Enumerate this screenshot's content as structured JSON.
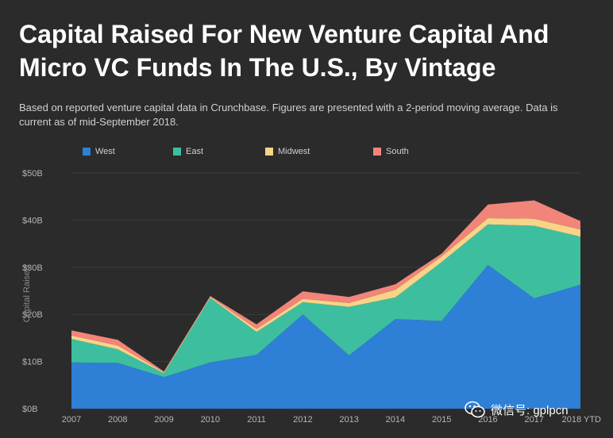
{
  "title": "Capital Raised For New Venture Capital And Micro VC Funds In The U.S., By Vintage",
  "subtitle": "Based on reported venture capital data in Crunchbase. Figures are presented with a 2-period moving average. Data is current as of mid-September 2018.",
  "watermark": "微信号: gplpcn",
  "chart_data": {
    "type": "area",
    "stacked": true,
    "categories": [
      "2007",
      "2008",
      "2009",
      "2010",
      "2011",
      "2012",
      "2013",
      "2014",
      "2015",
      "2016",
      "2017",
      "2018 YTD"
    ],
    "ylabel": "Capital Raised",
    "xlabel": "",
    "ylim": [
      0,
      50
    ],
    "yticks": [
      "$0B",
      "$10B",
      "$20B",
      "$30B",
      "$40B",
      "$50B"
    ],
    "legend_position": "top",
    "series": [
      {
        "name": "West",
        "color": "#2e7fd6",
        "values": [
          9.8,
          9.7,
          6.7,
          9.8,
          11.4,
          20.0,
          11.3,
          19.0,
          18.6,
          30.5,
          23.4,
          26.3
        ]
      },
      {
        "name": "East",
        "color": "#3dbf9f",
        "values": [
          5.0,
          2.9,
          0.8,
          13.7,
          4.9,
          2.6,
          10.3,
          4.6,
          12.5,
          8.6,
          15.4,
          10.2
        ]
      },
      {
        "name": "Midwest",
        "color": "#f8d486",
        "values": [
          0.7,
          0.8,
          0.2,
          0.2,
          0.6,
          0.7,
          0.8,
          1.6,
          1.2,
          1.3,
          1.5,
          1.5
        ]
      },
      {
        "name": "South",
        "color": "#f1857a",
        "values": [
          1.1,
          1.2,
          0.2,
          0.2,
          1.0,
          1.6,
          1.3,
          1.2,
          0.6,
          2.9,
          3.9,
          1.8
        ]
      }
    ]
  }
}
